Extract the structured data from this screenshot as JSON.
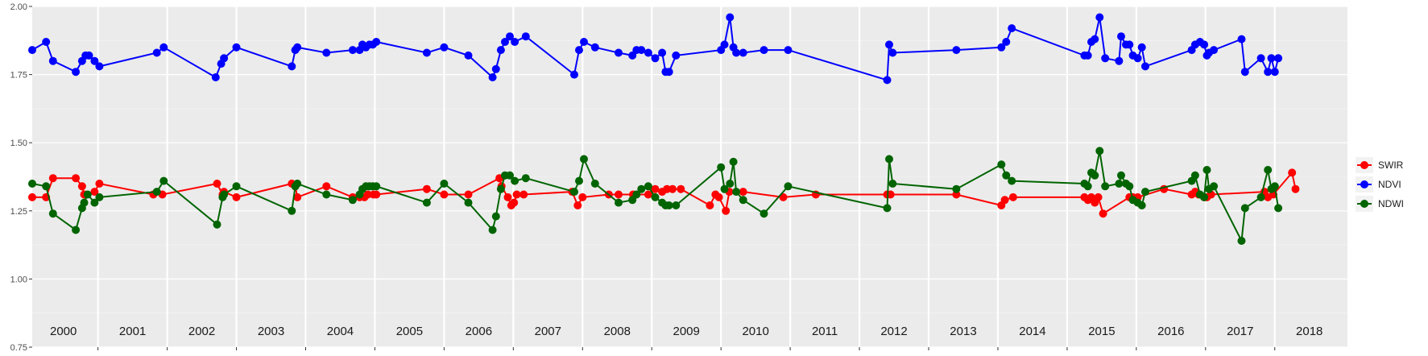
{
  "chart_data": {
    "type": "line",
    "title": "",
    "xlabel": "",
    "ylabel": "",
    "ylim": [
      0.75,
      2.0
    ],
    "xlim": [
      1999.55,
      2018.55
    ],
    "grid": true,
    "legend_position": "right",
    "y_ticks": [
      "0.75",
      "1.00",
      "1.25",
      "1.50",
      "1.75",
      "2.00"
    ],
    "y_tick_values": [
      0.75,
      1.0,
      1.25,
      1.5,
      1.75,
      2.0
    ],
    "years": [
      "2000",
      "2001",
      "2002",
      "2003",
      "2004",
      "2005",
      "2006",
      "2007",
      "2008",
      "2009",
      "2010",
      "2011",
      "2012",
      "2013",
      "2014",
      "2015",
      "2016",
      "2017",
      "2018"
    ],
    "year_boundaries": [
      2000.5,
      2001.5,
      2002.5,
      2003.5,
      2004.5,
      2005.5,
      2006.5,
      2007.5,
      2008.5,
      2009.5,
      2010.5,
      2011.5,
      2012.5,
      2013.5,
      2014.5,
      2015.5,
      2016.5,
      2017.5
    ],
    "series": [
      {
        "name": "SWIR",
        "color": "#ff0000",
        "x": [
          1999.55,
          1999.75,
          1999.85,
          2000.18,
          2000.27,
          2000.3,
          2000.45,
          2000.52,
          2001.3,
          2001.43,
          2002.22,
          2002.3,
          2002.32,
          2002.5,
          2003.3,
          2003.35,
          2003.38,
          2003.8,
          2004.18,
          2004.28,
          2004.35,
          2004.4,
          2004.48,
          2004.52,
          2005.25,
          2005.5,
          2005.85,
          2006.3,
          2006.33,
          2006.42,
          2006.47,
          2006.51,
          2006.55,
          2006.65,
          2007.35,
          2007.43,
          2007.5,
          2007.88,
          2008.02,
          2008.23,
          2008.45,
          2008.55,
          2008.65,
          2008.72,
          2008.8,
          2008.92,
          2009.34,
          2009.42,
          2009.47,
          2009.57,
          2009.62,
          2009.82,
          2010.4,
          2010.87,
          2011.9,
          2011.95,
          2012.9,
          2013.55,
          2013.6,
          2013.72,
          2014.75,
          2014.8,
          2014.85,
          2014.9,
          2014.95,
          2015.02,
          2015.4,
          2015.45,
          2015.52,
          2015.9,
          2016.3,
          2016.35,
          2016.4,
          2016.48,
          2016.52,
          2016.58,
          2017.35,
          2017.4,
          2017.48,
          2017.75,
          2017.8
        ],
        "y": [
          1.3,
          1.3,
          1.37,
          1.37,
          1.34,
          1.31,
          1.32,
          1.35,
          1.31,
          1.31,
          1.35,
          1.31,
          1.32,
          1.3,
          1.35,
          1.34,
          1.3,
          1.34,
          1.3,
          1.3,
          1.3,
          1.31,
          1.31,
          1.31,
          1.33,
          1.31,
          1.31,
          1.37,
          1.34,
          1.3,
          1.27,
          1.28,
          1.31,
          1.31,
          1.32,
          1.27,
          1.3,
          1.31,
          1.31,
          1.31,
          1.31,
          1.33,
          1.32,
          1.33,
          1.33,
          1.33,
          1.27,
          1.31,
          1.3,
          1.25,
          1.32,
          1.32,
          1.3,
          1.31,
          1.31,
          1.31,
          1.31,
          1.27,
          1.29,
          1.3,
          1.3,
          1.29,
          1.3,
          1.28,
          1.3,
          1.24,
          1.3,
          1.3,
          1.3,
          1.33,
          1.31,
          1.32,
          1.31,
          1.3,
          1.3,
          1.31,
          1.32,
          1.3,
          1.31,
          1.39,
          1.33
        ]
      },
      {
        "name": "NDVI",
        "color": "#0000ff",
        "x": [
          1999.55,
          1999.75,
          1999.85,
          2000.18,
          2000.27,
          2000.32,
          2000.37,
          2000.45,
          2000.52,
          2001.35,
          2001.45,
          2002.2,
          2002.28,
          2002.32,
          2002.5,
          2003.3,
          2003.35,
          2003.38,
          2003.8,
          2004.18,
          2004.28,
          2004.32,
          2004.37,
          2004.42,
          2004.47,
          2004.52,
          2005.25,
          2005.5,
          2005.85,
          2006.2,
          2006.25,
          2006.32,
          2006.38,
          2006.45,
          2006.52,
          2006.68,
          2007.38,
          2007.45,
          2007.52,
          2007.68,
          2008.02,
          2008.22,
          2008.28,
          2008.35,
          2008.45,
          2008.55,
          2008.65,
          2008.7,
          2008.75,
          2008.85,
          2009.5,
          2009.55,
          2009.63,
          2009.68,
          2009.72,
          2009.82,
          2010.12,
          2010.47,
          2011.9,
          2011.93,
          2011.98,
          2012.9,
          2013.55,
          2013.62,
          2013.7,
          2014.75,
          2014.8,
          2014.85,
          2014.9,
          2014.97,
          2015.05,
          2015.25,
          2015.28,
          2015.35,
          2015.4,
          2015.45,
          2015.52,
          2015.58,
          2015.63,
          2016.3,
          2016.35,
          2016.42,
          2016.48,
          2016.52,
          2016.55,
          2016.62,
          2017.02,
          2017.07,
          2017.3,
          2017.4,
          2017.45,
          2017.5,
          2017.55
        ],
        "y": [
          1.84,
          1.87,
          1.8,
          1.76,
          1.8,
          1.82,
          1.82,
          1.8,
          1.78,
          1.83,
          1.85,
          1.74,
          1.79,
          1.81,
          1.85,
          1.78,
          1.84,
          1.85,
          1.83,
          1.84,
          1.84,
          1.86,
          1.85,
          1.86,
          1.86,
          1.87,
          1.83,
          1.85,
          1.82,
          1.74,
          1.77,
          1.84,
          1.87,
          1.89,
          1.87,
          1.89,
          1.75,
          1.84,
          1.87,
          1.85,
          1.83,
          1.82,
          1.84,
          1.84,
          1.83,
          1.81,
          1.83,
          1.76,
          1.76,
          1.82,
          1.84,
          1.86,
          1.96,
          1.85,
          1.83,
          1.83,
          1.84,
          1.84,
          1.73,
          1.86,
          1.83,
          1.84,
          1.85,
          1.87,
          1.92,
          1.82,
          1.82,
          1.87,
          1.88,
          1.96,
          1.81,
          1.8,
          1.89,
          1.86,
          1.86,
          1.82,
          1.81,
          1.85,
          1.78,
          1.84,
          1.86,
          1.87,
          1.86,
          1.82,
          1.83,
          1.84,
          1.88,
          1.76,
          1.81,
          1.76,
          1.81,
          1.76,
          1.81
        ]
      },
      {
        "name": "NDWI",
        "color": "#006400",
        "x": [
          1999.55,
          1999.75,
          1999.85,
          2000.18,
          2000.27,
          2000.3,
          2000.35,
          2000.45,
          2000.52,
          2001.35,
          2001.45,
          2002.22,
          2002.3,
          2002.32,
          2002.5,
          2003.3,
          2003.35,
          2003.38,
          2003.8,
          2004.18,
          2004.28,
          2004.32,
          2004.37,
          2004.42,
          2004.47,
          2004.52,
          2005.25,
          2005.5,
          2005.85,
          2006.2,
          2006.25,
          2006.32,
          2006.38,
          2006.45,
          2006.52,
          2006.68,
          2007.38,
          2007.45,
          2007.52,
          2007.68,
          2008.02,
          2008.22,
          2008.28,
          2008.35,
          2008.45,
          2008.55,
          2008.65,
          2008.7,
          2008.75,
          2008.85,
          2009.5,
          2009.55,
          2009.63,
          2009.68,
          2009.72,
          2009.82,
          2010.12,
          2010.47,
          2011.9,
          2011.93,
          2011.98,
          2012.9,
          2013.55,
          2013.62,
          2013.7,
          2014.75,
          2014.8,
          2014.85,
          2014.9,
          2014.97,
          2015.05,
          2015.25,
          2015.28,
          2015.35,
          2015.4,
          2015.45,
          2015.52,
          2015.58,
          2015.63,
          2016.3,
          2016.35,
          2016.42,
          2016.48,
          2016.52,
          2016.55,
          2016.62,
          2017.02,
          2017.07,
          2017.3,
          2017.4,
          2017.45,
          2017.5,
          2017.55
        ],
        "y": [
          1.35,
          1.34,
          1.24,
          1.18,
          1.26,
          1.28,
          1.31,
          1.28,
          1.3,
          1.32,
          1.36,
          1.2,
          1.3,
          1.31,
          1.34,
          1.25,
          1.34,
          1.35,
          1.31,
          1.29,
          1.31,
          1.33,
          1.34,
          1.34,
          1.34,
          1.34,
          1.28,
          1.35,
          1.28,
          1.18,
          1.23,
          1.33,
          1.38,
          1.38,
          1.36,
          1.37,
          1.32,
          1.36,
          1.44,
          1.35,
          1.28,
          1.29,
          1.31,
          1.33,
          1.34,
          1.3,
          1.28,
          1.27,
          1.27,
          1.27,
          1.41,
          1.33,
          1.35,
          1.43,
          1.32,
          1.29,
          1.24,
          1.34,
          1.26,
          1.44,
          1.35,
          1.33,
          1.42,
          1.38,
          1.36,
          1.35,
          1.34,
          1.39,
          1.38,
          1.47,
          1.34,
          1.35,
          1.38,
          1.35,
          1.34,
          1.29,
          1.28,
          1.27,
          1.32,
          1.36,
          1.38,
          1.31,
          1.3,
          1.4,
          1.33,
          1.34,
          1.14,
          1.26,
          1.3,
          1.4,
          1.33,
          1.34,
          1.26
        ]
      }
    ]
  }
}
